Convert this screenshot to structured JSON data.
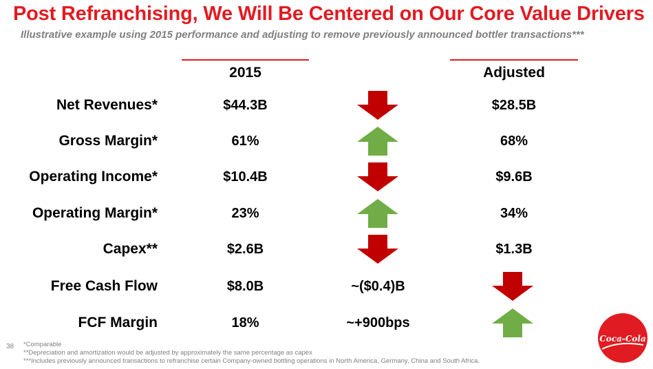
{
  "title": "Post Refranchising, We Will Be Centered on Our Core Value Drivers",
  "subtitle": "Illustrative example using 2015 performance and adjusting to remove previously announced bottler transactions***",
  "columns": {
    "year": "2015",
    "adjusted": "Adjusted"
  },
  "rows": [
    {
      "label": "Net Revenues*",
      "v2015": "$44.3B",
      "mid": "",
      "mid_arrow": "down-arrow-icon",
      "adjusted": "$28.5B",
      "adj_arrow": ""
    },
    {
      "label": "Gross Margin*",
      "v2015": "61%",
      "mid": "",
      "mid_arrow": "up-arrow-icon",
      "adjusted": "68%",
      "adj_arrow": ""
    },
    {
      "label": "Operating Income*",
      "v2015": "$10.4B",
      "mid": "",
      "mid_arrow": "down-arrow-icon",
      "adjusted": "$9.6B",
      "adj_arrow": ""
    },
    {
      "label": "Operating Margin*",
      "v2015": "23%",
      "mid": "",
      "mid_arrow": "up-arrow-icon",
      "adjusted": "34%",
      "adj_arrow": ""
    },
    {
      "label": "Capex**",
      "v2015": "$2.6B",
      "mid": "",
      "mid_arrow": "down-arrow-icon",
      "adjusted": "$1.3B",
      "adj_arrow": ""
    },
    {
      "label": "Free Cash Flow",
      "v2015": "$8.0B",
      "mid": "~($0.4)B",
      "mid_arrow": "",
      "adjusted": "",
      "adj_arrow": "down-arrow-icon"
    },
    {
      "label": "FCF Margin",
      "v2015": "18%",
      "mid": "~+900bps",
      "mid_arrow": "",
      "adjusted": "",
      "adj_arrow": "up-arrow-icon"
    }
  ],
  "colors": {
    "accent_red": "#e11b22",
    "down_arrow": "#c00000",
    "up_arrow": "#70ad47",
    "muted_text": "#7f7f7f"
  },
  "page_number": "38",
  "footnotes": [
    "*Comparable",
    "**Depreciation and amortization would be adjusted by approximately the same percentage as capex",
    "***Includes previously announced transactions to refranchise certain Company-owned bottling operations in North America, Germany, China and South Africa."
  ],
  "logo": {
    "text": "Coca-Cola",
    "icon": "coca-cola-logo"
  }
}
